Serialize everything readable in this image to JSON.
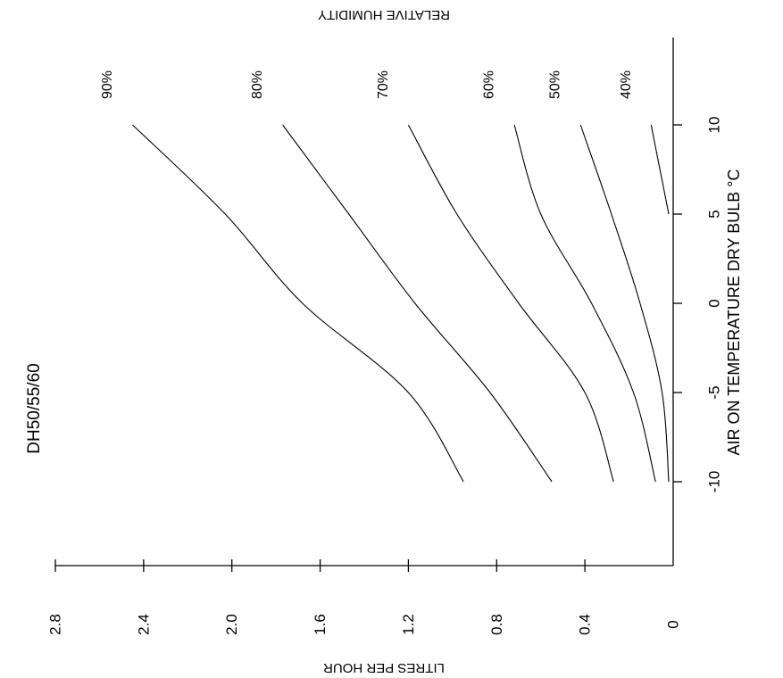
{
  "chart_data": {
    "type": "line",
    "title": "DH50/55/60",
    "xlabel": "AIR ON TEMPERATURE DRY BULB °C",
    "ylabel": "LITRES PER HOUR",
    "series_label": "RELATIVE HUMIDITY",
    "orientation": "rotated-90-clockwise",
    "xlim": [
      -12,
      11
    ],
    "ylim": [
      0,
      2.8
    ],
    "x_ticks": [
      -10,
      -5,
      0,
      5,
      10
    ],
    "x_tick_labels": [
      "-10",
      "-5",
      "0",
      "5",
      "10"
    ],
    "y_ticks": [
      0,
      0.4,
      0.8,
      1.2,
      1.6,
      2.0,
      2.4,
      2.8
    ],
    "y_tick_labels": [
      "0",
      "0.4",
      "0.8",
      "1.2",
      "1.6",
      "2.0",
      "2.4",
      "2.8"
    ],
    "series": [
      {
        "name": "90%",
        "x": [
          -10,
          -5,
          0,
          5,
          10
        ],
        "y": [
          0.95,
          1.2,
          1.68,
          2.03,
          2.45
        ]
      },
      {
        "name": "80%",
        "x": [
          -10,
          -5,
          0,
          5,
          10
        ],
        "y": [
          0.55,
          0.83,
          1.17,
          1.47,
          1.77
        ]
      },
      {
        "name": "70%",
        "x": [
          -10,
          -5,
          0,
          5,
          10
        ],
        "y": [
          0.27,
          0.4,
          0.7,
          0.98,
          1.2
        ]
      },
      {
        "name": "60%",
        "x": [
          -10,
          -5,
          0,
          5,
          10
        ],
        "y": [
          0.08,
          0.18,
          0.37,
          0.6,
          0.72
        ]
      },
      {
        "name": "50%",
        "x": [
          -10,
          -5,
          0,
          5,
          10
        ],
        "y": [
          0.02,
          0.05,
          0.15,
          0.28,
          0.42
        ]
      },
      {
        "name": "40%",
        "x": [
          5,
          10
        ],
        "y": [
          0.02,
          0.1
        ]
      }
    ],
    "grid": false,
    "legend": "none"
  }
}
